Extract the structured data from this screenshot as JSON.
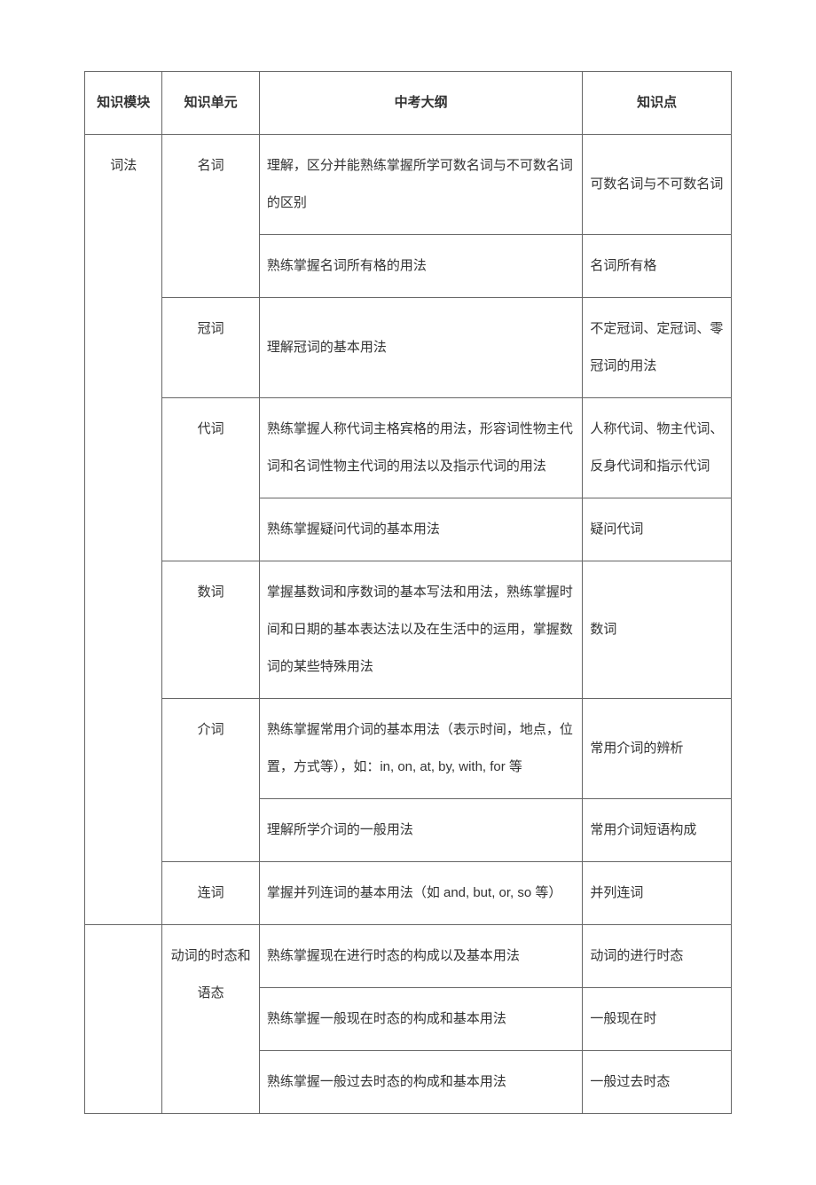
{
  "headers": {
    "module": "知识模块",
    "unit": "知识单元",
    "outline": "中考大纲",
    "point": "知识点"
  },
  "module": "词法",
  "units": {
    "noun": "名词",
    "article": "冠词",
    "pronoun": "代词",
    "numeral": "数词",
    "preposition": "介词",
    "conjunction": "连词",
    "verb_tense": "动词的时态和语态"
  },
  "rows": {
    "r1": {
      "outline": "理解，区分并能熟练掌握所学可数名词与不可数名词的区别",
      "point": "可数名词与不可数名词"
    },
    "r2": {
      "outline": "熟练掌握名词所有格的用法",
      "point": "名词所有格"
    },
    "r3": {
      "outline": "理解冠词的基本用法",
      "point": "不定冠词、定冠词、零冠词的用法"
    },
    "r4": {
      "outline": "熟练掌握人称代词主格宾格的用法，形容词性物主代词和名词性物主代词的用法以及指示代词的用法",
      "point": "人称代词、物主代词、反身代词和指示代词"
    },
    "r5": {
      "outline": "熟练掌握疑问代词的基本用法",
      "point": "疑问代词"
    },
    "r6": {
      "outline": "掌握基数词和序数词的基本写法和用法，熟练掌握时间和日期的基本表达法以及在生活中的运用，掌握数词的某些特殊用法",
      "point": "数词"
    },
    "r7": {
      "outline": "熟练掌握常用介词的基本用法（表示时间，地点，位置，方式等），如：in, on, at, by, with, for 等",
      "point": "常用介词的辨析"
    },
    "r8": {
      "outline": "理解所学介词的一般用法",
      "point": "常用介词短语构成"
    },
    "r9": {
      "outline": "掌握并列连词的基本用法（如 and, but, or, so 等）",
      "point": "并列连词"
    },
    "r10": {
      "outline": "熟练掌握现在进行时态的构成以及基本用法",
      "point": "动词的进行时态"
    },
    "r11": {
      "outline": "熟练掌握一般现在时态的构成和基本用法",
      "point": "一般现在时"
    },
    "r12": {
      "outline": "熟练掌握一般过去时态的构成和基本用法",
      "point": "一般过去时态"
    }
  }
}
